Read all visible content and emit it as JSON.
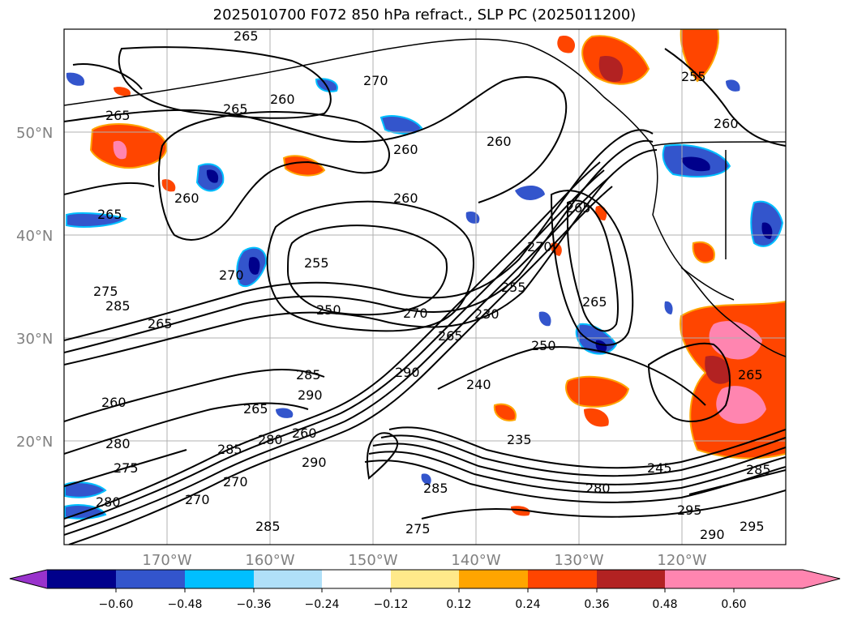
{
  "title": "2025010700 F072 850 hPa refract., SLP PC (2025011200)",
  "axes": {
    "lat_ticks": [
      "50°N",
      "40°N",
      "30°N",
      "20°N"
    ],
    "lon_ticks": [
      "170°W",
      "160°W",
      "150°W",
      "140°W",
      "130°W",
      "120°W"
    ]
  },
  "contour_labels": [
    "265",
    "270",
    "265",
    "260",
    "265",
    "260",
    "260",
    "265",
    "260",
    "260",
    "265",
    "255",
    "270",
    "275",
    "285",
    "250",
    "230",
    "255",
    "270",
    "265",
    "265",
    "260",
    "285",
    "290",
    "280",
    "290",
    "285",
    "280",
    "275",
    "270",
    "285",
    "280",
    "270",
    "240",
    "235",
    "245",
    "280",
    "290",
    "295",
    "255",
    "260",
    "270",
    "265",
    "260",
    "250",
    "275",
    "265",
    "285",
    "290",
    "295",
    "285",
    "265"
  ],
  "colorbar": {
    "colors": [
      "#9933cc",
      "#00008b",
      "#3355cc",
      "#00bfff",
      "#b0e0f8",
      "#ffffff",
      "#ffe98a",
      "#ffa500",
      "#ff4500",
      "#b22222",
      "#ff85b0"
    ],
    "tick_labels": [
      "−0.60",
      "−0.48",
      "−0.36",
      "−0.24",
      "−0.12",
      "0.12",
      "0.24",
      "0.36",
      "0.48",
      "0.60"
    ]
  },
  "legend_colors": {
    "positive_strong": "#ff85b0",
    "positive_mid": "#ff4500",
    "negative_mid": "#3355cc",
    "negative_strong": "#00008b",
    "contour": "#000000",
    "grid": "#b0b0b0"
  }
}
